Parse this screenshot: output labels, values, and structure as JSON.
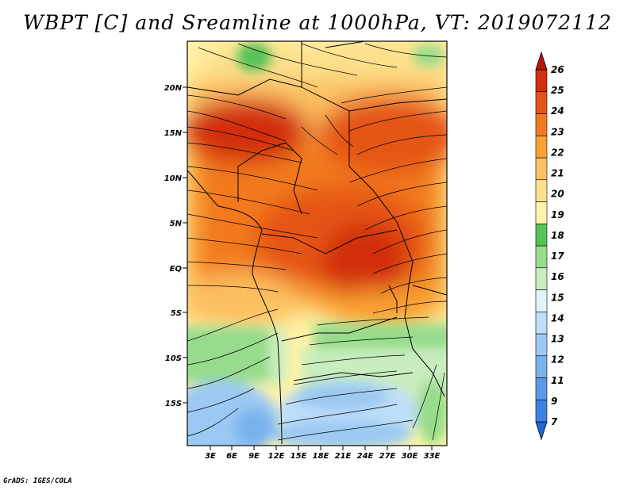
{
  "title": "WBPT [C] and Sreamline at 1000hPa, VT: 2019072112",
  "credit": "GrADS: IGES/COLA",
  "map": {
    "lat_labels": [
      "20N",
      "15N",
      "10N",
      "5N",
      "EQ",
      "5S",
      "10S",
      "15S"
    ],
    "lon_labels": [
      "3E",
      "6E",
      "9E",
      "12E",
      "15E",
      "18E",
      "21E",
      "24E",
      "27E",
      "30E",
      "33E"
    ]
  },
  "colorbar": {
    "labels": [
      "7",
      "9",
      "11",
      "12",
      "13",
      "14",
      "15",
      "16",
      "17",
      "18",
      "19",
      "20",
      "21",
      "22",
      "23",
      "24",
      "25",
      "26"
    ],
    "colors": [
      "#2366d8",
      "#3d82e3",
      "#5c99ea",
      "#7ab2ee",
      "#9bc9f3",
      "#bfdef8",
      "#e3f3fb",
      "#c8edbe",
      "#96dc8c",
      "#55c356",
      "#fff3a8",
      "#fde08c",
      "#fcc060",
      "#f8a030",
      "#f27a1e",
      "#e55418",
      "#d22e10",
      "#b7160c"
    ]
  }
}
